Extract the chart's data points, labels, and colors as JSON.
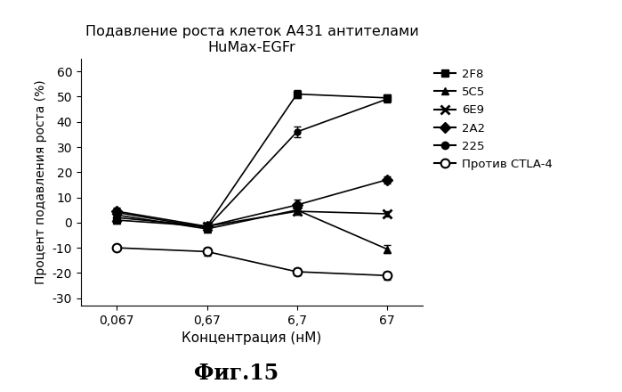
{
  "title_line1": "Подавление роста клеток А431 антителами",
  "title_line2": "HuMax-EGFr",
  "xlabel": "Концентрация (нМ)",
  "ylabel": "Процент подавления роста (%)",
  "x_labels": [
    "0,067",
    "0,67",
    "6,7",
    "67"
  ],
  "x_positions": [
    0,
    1,
    2,
    3
  ],
  "ylim": [
    -33,
    65
  ],
  "yticks": [
    -30,
    -20,
    -10,
    0,
    10,
    20,
    30,
    40,
    50,
    60
  ],
  "series": [
    {
      "label": "2F8",
      "marker": "s",
      "values": [
        1.0,
        -1.5,
        51.0,
        49.5
      ],
      "yerr": [
        1.5,
        1.5,
        1.5,
        1.5
      ],
      "color": "#000000",
      "markersize": 6,
      "fillstyle": "full"
    },
    {
      "label": "5C5",
      "marker": "^",
      "values": [
        3.0,
        -2.5,
        5.0,
        -10.5
      ],
      "yerr": [
        1.0,
        1.5,
        2.0,
        1.5
      ],
      "color": "#000000",
      "markersize": 6,
      "fillstyle": "full"
    },
    {
      "label": "6E9",
      "marker": "x",
      "values": [
        2.0,
        -1.5,
        4.5,
        3.5
      ],
      "yerr": [
        1.0,
        1.0,
        1.5,
        1.0
      ],
      "color": "#000000",
      "markersize": 7,
      "fillstyle": "full"
    },
    {
      "label": "2A2",
      "marker": "D",
      "values": [
        4.5,
        -1.5,
        7.0,
        17.0
      ],
      "yerr": [
        1.5,
        1.0,
        2.0,
        1.5
      ],
      "color": "#000000",
      "markersize": 6,
      "fillstyle": "full"
    },
    {
      "label": "225",
      "marker": "o",
      "values": [
        4.0,
        -2.0,
        36.0,
        49.0
      ],
      "yerr": [
        1.5,
        1.5,
        2.0,
        1.5
      ],
      "color": "#000000",
      "markersize": 5,
      "fillstyle": "full"
    },
    {
      "label": "Против CTLA-4",
      "marker": "o",
      "values": [
        -10.0,
        -11.5,
        -19.5,
        -21.0
      ],
      "yerr": [
        1.0,
        1.5,
        1.5,
        1.5
      ],
      "color": "#000000",
      "markersize": 7,
      "fillstyle": "none"
    }
  ],
  "legend_entries": [
    {
      "label": "2F8",
      "marker": "s",
      "fillstyle": "full"
    },
    {
      "label": "5C5",
      "marker": "^",
      "fillstyle": "full"
    },
    {
      "label": "6E9",
      "marker": "x",
      "fillstyle": "full"
    },
    {
      "label": "2A2",
      "marker": "D",
      "fillstyle": "full"
    },
    {
      "label": "225",
      "marker": "o",
      "fillstyle": "full"
    },
    {
      "label": "Против CTLA-4",
      "marker": "o",
      "fillstyle": "none"
    }
  ],
  "background_color": "#ffffff",
  "fig_caption": "Фиг.15"
}
